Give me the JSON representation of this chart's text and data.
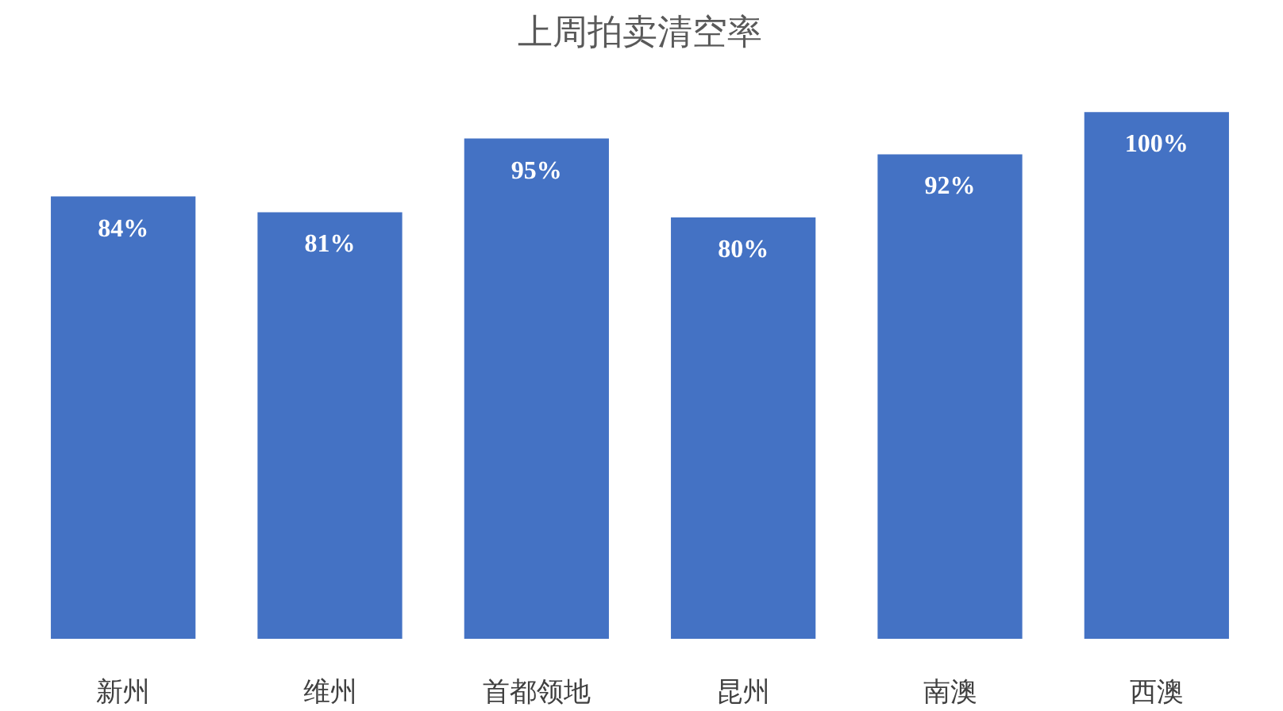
{
  "chart_data": {
    "type": "bar",
    "title": "上周拍卖清空率",
    "categories": [
      "新州",
      "维州",
      "首都领地",
      "昆州",
      "南澳",
      "西澳"
    ],
    "values": [
      84,
      81,
      95,
      80,
      92,
      100
    ],
    "value_labels": [
      "84%",
      "81%",
      "95%",
      "80%",
      "92%",
      "100%"
    ],
    "color": "#4472c4",
    "grid": false
  }
}
